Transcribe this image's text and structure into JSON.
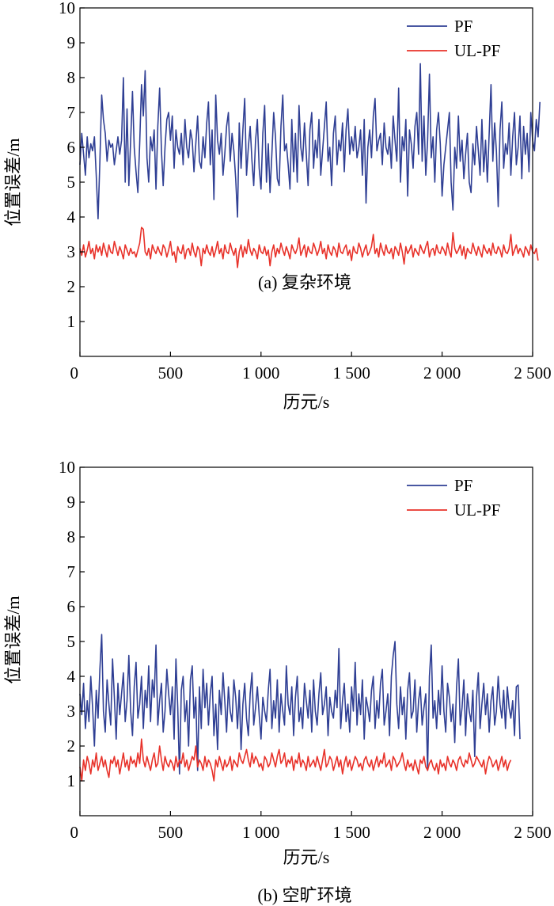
{
  "chart_data": [
    {
      "type": "line",
      "caption": "(a) 复杂环境",
      "xlabel": "历元/s",
      "ylabel": "位置误差/m",
      "xlim": [
        0,
        2500
      ],
      "ylim": [
        0,
        10
      ],
      "x_ticks": [
        0,
        500,
        1000,
        1500,
        2000,
        2500
      ],
      "x_tick_labels": [
        "0",
        "500",
        "1 000",
        "1 500",
        "2 000",
        "2 500"
      ],
      "y_ticks": [
        1,
        2,
        3,
        4,
        5,
        6,
        7,
        8,
        9,
        10
      ],
      "y_tick_labels": [
        "1",
        "2",
        "3",
        "4",
        "5",
        "6",
        "7",
        "8",
        "9",
        "10"
      ],
      "legend_position": "top-right",
      "grid": false,
      "series": [
        {
          "name": "PF",
          "color": "#2f3f94",
          "x_start": 0,
          "x_step": 10,
          "values": [
            5.5,
            6.4,
            5.8,
            5.2,
            6.3,
            5.7,
            6.1,
            5.9,
            6.3,
            5.2,
            3.95,
            5.6,
            7.5,
            6.8,
            6.4,
            5.6,
            6.2,
            6.0,
            6.1,
            5.5,
            5.9,
            6.3,
            5.8,
            6.2,
            8.0,
            5.0,
            7.1,
            4.9,
            6.2,
            7.6,
            6.0,
            5.3,
            4.7,
            6.1,
            7.8,
            6.9,
            8.2,
            5.7,
            5.0,
            6.3,
            5.9,
            6.5,
            4.8,
            6.6,
            7.7,
            5.9,
            4.9,
            6.0,
            6.8,
            7.0,
            6.2,
            6.9,
            5.4,
            6.5,
            6.0,
            5.8,
            6.4,
            5.5,
            6.8,
            6.0,
            5.7,
            6.5,
            6.2,
            5.3,
            6.1,
            6.9,
            5.6,
            5.4,
            6.3,
            5.7,
            6.7,
            7.3,
            5.5,
            6.5,
            4.5,
            7.5,
            6.2,
            5.8,
            6.4,
            5.2,
            5.8,
            6.6,
            7.0,
            5.6,
            6.4,
            5.9,
            5.1,
            4.0,
            6.7,
            5.4,
            6.5,
            7.4,
            5.2,
            6.0,
            6.6,
            5.6,
            4.9,
            6.2,
            6.8,
            5.4,
            4.8,
            6.4,
            7.2,
            5.0,
            6.1,
            4.7,
            5.8,
            7.0,
            6.3,
            5.1,
            4.9,
            6.6,
            7.5,
            5.9,
            6.1,
            5.5,
            4.8,
            6.8,
            5.3,
            6.4,
            5.0,
            7.2,
            6.0,
            5.6,
            6.7,
            5.8,
            4.9,
            6.5,
            7.0,
            5.4,
            6.2,
            5.7,
            6.8,
            5.2,
            5.9,
            6.6,
            7.3,
            5.6,
            6.0,
            4.9,
            6.4,
            6.9,
            5.5,
            6.2,
            5.9,
            6.7,
            5.3,
            6.5,
            7.1,
            5.8,
            6.3,
            5.9,
            6.6,
            5.7,
            6.0,
            6.5,
            5.2,
            6.8,
            4.4,
            6.0,
            6.5,
            5.7,
            6.9,
            7.4,
            5.9,
            6.2,
            6.4,
            5.5,
            6.7,
            6.0,
            5.8,
            6.3,
            5.4,
            6.9,
            6.2,
            5.6,
            7.7,
            5.0,
            6.3,
            5.9,
            6.8,
            4.6,
            6.5,
            6.1,
            5.4,
            6.6,
            7.0,
            5.8,
            8.4,
            5.6,
            6.9,
            5.2,
            6.2,
            8.1,
            5.7,
            6.3,
            5.0,
            6.5,
            7.0,
            6.1,
            4.6,
            5.5,
            6.0,
            6.5,
            7.0,
            5.0,
            4.2,
            6.0,
            5.4,
            6.9,
            5.6,
            6.2,
            5.1,
            5.8,
            6.4,
            5.0,
            4.7,
            6.1,
            5.5,
            6.6,
            5.9,
            5.2,
            6.8,
            5.3,
            6.2,
            5.0,
            6.4,
            7.8,
            5.6,
            6.7,
            5.9,
            4.3,
            6.5,
            7.3,
            5.4,
            6.1,
            5.8,
            6.7,
            5.2,
            6.3,
            7.0,
            5.5,
            6.0,
            6.9,
            5.1,
            6.6,
            5.8,
            6.4,
            5.3,
            7.0,
            6.2,
            5.9,
            6.8,
            6.3,
            7.3
          ]
        },
        {
          "name": "UL-PF",
          "color": "#e8322a",
          "x_start": 0,
          "x_step": 10,
          "values": [
            3.1,
            2.9,
            3.2,
            2.85,
            3.05,
            3.3,
            2.95,
            3.1,
            2.8,
            3.2,
            3.0,
            3.15,
            2.9,
            3.25,
            3.05,
            2.85,
            3.2,
            3.0,
            2.95,
            3.3,
            3.1,
            2.9,
            3.15,
            3.0,
            2.8,
            3.2,
            3.05,
            2.9,
            3.1,
            2.95,
            3.0,
            2.85,
            3.05,
            3.25,
            3.7,
            3.65,
            3.0,
            2.9,
            3.1,
            2.8,
            3.2,
            3.05,
            2.95,
            3.15,
            3.0,
            2.9,
            3.2,
            3.1,
            2.85,
            3.05,
            3.3,
            2.9,
            3.0,
            2.7,
            3.15,
            3.0,
            2.95,
            3.2,
            2.8,
            3.05,
            3.1,
            2.9,
            3.25,
            3.0,
            2.85,
            3.15,
            3.05,
            2.6,
            3.1,
            2.95,
            3.2,
            3.0,
            2.9,
            3.15,
            2.85,
            3.05,
            3.3,
            2.95,
            3.1,
            2.8,
            3.2,
            3.0,
            2.95,
            3.25,
            3.05,
            2.9,
            3.1,
            2.55,
            3.0,
            3.2,
            2.85,
            3.15,
            2.95,
            3.35,
            3.05,
            2.9,
            3.1,
            3.0,
            2.8,
            3.2,
            3.0,
            2.95,
            3.15,
            2.9,
            3.05,
            2.6,
            3.0,
            3.2,
            2.85,
            3.1,
            2.95,
            3.25,
            3.05,
            2.9,
            3.15,
            3.0,
            2.8,
            3.2,
            3.05,
            2.95,
            3.1,
            3.4,
            2.9,
            3.05,
            3.2,
            2.85,
            3.15,
            3.0,
            2.95,
            3.25,
            3.1,
            2.9,
            3.05,
            3.3,
            2.95,
            3.1,
            2.8,
            3.2,
            3.0,
            2.9,
            3.15,
            3.05,
            2.85,
            3.25,
            3.0,
            2.95,
            3.1,
            3.2,
            2.9,
            3.05,
            2.75,
            3.15,
            3.0,
            2.95,
            3.25,
            3.1,
            2.85,
            3.05,
            3.2,
            2.9,
            3.0,
            3.15,
            3.5,
            2.95,
            3.1,
            2.85,
            3.25,
            3.05,
            2.9,
            3.2,
            3.0,
            2.95,
            3.1,
            2.8,
            3.15,
            3.05,
            2.9,
            3.25,
            3.0,
            2.65,
            3.15,
            2.95,
            3.05,
            3.2,
            2.85,
            3.1,
            3.0,
            2.9,
            3.2,
            3.05,
            2.95,
            3.15,
            3.3,
            2.85,
            3.05,
            3.1,
            2.9,
            3.2,
            3.0,
            2.95,
            3.15,
            3.05,
            2.9,
            3.25,
            3.0,
            2.85,
            3.55,
            3.1,
            2.95,
            3.05,
            3.2,
            2.9,
            3.15,
            2.8,
            3.1,
            3.0,
            2.95,
            3.25,
            3.05,
            2.9,
            3.15,
            3.0,
            2.85,
            3.2,
            3.05,
            2.95,
            3.1,
            2.9,
            3.25,
            3.0,
            2.95,
            3.15,
            3.05,
            2.85,
            3.2,
            3.0,
            2.95,
            3.1,
            3.5,
            2.9,
            3.05,
            3.2,
            2.95,
            3.1,
            3.0,
            2.85,
            3.15,
            3.05,
            2.9,
            3.2,
            3.0,
            2.95,
            3.1,
            2.75
          ]
        }
      ]
    },
    {
      "type": "line",
      "caption": "(b) 空旷环境",
      "xlabel": "历元/s",
      "ylabel": "位置误差/m",
      "xlim": [
        0,
        2500
      ],
      "ylim": [
        0,
        10
      ],
      "x_ticks": [
        0,
        500,
        1000,
        1500,
        2000,
        2500
      ],
      "x_tick_labels": [
        "0",
        "500",
        "1 000",
        "1 500",
        "2 000",
        "2 500"
      ],
      "y_ticks": [
        1,
        2,
        3,
        4,
        5,
        6,
        7,
        8,
        9,
        10
      ],
      "y_tick_labels": [
        "1",
        "2",
        "3",
        "4",
        "5",
        "6",
        "7",
        "8",
        "9",
        "10"
      ],
      "legend_position": "top-right",
      "grid": false,
      "series": [
        {
          "name": "PF",
          "color": "#2f3f94",
          "x_start": 0,
          "x_step": 10,
          "values": [
            3.5,
            2.9,
            3.8,
            2.5,
            3.3,
            2.7,
            4.0,
            3.1,
            2.0,
            3.6,
            2.8,
            4.2,
            5.2,
            3.0,
            2.4,
            3.9,
            3.2,
            2.6,
            4.5,
            3.4,
            2.2,
            3.8,
            2.9,
            3.5,
            4.1,
            2.7,
            3.3,
            4.6,
            3.0,
            2.3,
            3.7,
            4.4,
            2.8,
            3.2,
            4.0,
            2.5,
            3.6,
            3.1,
            4.3,
            2.7,
            3.9,
            3.4,
            4.9,
            2.6,
            3.3,
            3.8,
            2.4,
            3.0,
            4.2,
            3.5,
            2.9,
            3.7,
            2.2,
            4.5,
            3.1,
            1.2,
            3.6,
            4.0,
            2.7,
            3.3,
            2.0,
            3.9,
            4.3,
            2.8,
            3.4,
            1.3,
            3.7,
            2.5,
            4.2,
            3.1,
            3.8,
            2.6,
            3.5,
            4.0,
            2.3,
            3.2,
            1.9,
            3.6,
            2.9,
            4.1,
            3.3,
            2.4,
            3.7,
            3.0,
            2.7,
            3.9,
            3.4,
            2.5,
            3.6,
            1.9,
            3.2,
            3.8,
            2.8,
            2.3,
            3.5,
            4.1,
            2.6,
            3.1,
            3.7,
            2.9,
            2.2,
            3.4,
            3.0,
            2.7,
            3.6,
            4.2,
            2.5,
            3.3,
            2.8,
            3.9,
            2.4,
            3.5,
            3.0,
            2.6,
            4.3,
            3.2,
            2.9,
            3.7,
            2.3,
            3.4,
            4.0,
            2.7,
            3.1,
            2.5,
            3.8,
            3.3,
            2.8,
            3.6,
            2.4,
            3.9,
            3.0,
            2.6,
            3.5,
            4.1,
            2.9,
            3.2,
            3.7,
            2.3,
            3.4,
            3.0,
            2.8,
            3.6,
            3.1,
            4.8,
            2.5,
            3.3,
            3.8,
            2.7,
            3.2,
            2.4,
            3.7,
            3.0,
            4.4,
            2.6,
            3.5,
            2.9,
            3.9,
            2.2,
            3.4,
            3.1,
            2.7,
            3.6,
            4.0,
            2.5,
            3.3,
            2.8,
            3.8,
            4.2,
            2.6,
            3.0,
            3.5,
            2.3,
            4.0,
            4.6,
            5.0,
            3.2,
            2.5,
            3.7,
            2.9,
            3.4,
            2.2,
            3.6,
            4.1,
            2.8,
            3.0,
            3.9,
            2.4,
            3.3,
            3.7,
            2.6,
            3.1,
            3.5,
            1.3,
            4.0,
            4.9,
            2.8,
            3.3,
            2.5,
            3.6,
            2.9,
            4.3,
            3.0,
            2.4,
            3.8,
            3.4,
            2.7,
            3.2,
            2.1,
            3.7,
            4.5,
            2.6,
            3.1,
            3.9,
            2.3,
            3.5,
            3.0,
            2.7,
            3.6,
            1.7,
            3.4,
            4.1,
            2.5,
            3.2,
            3.8,
            2.9,
            3.5,
            2.4,
            3.3,
            3.7,
            2.6,
            3.0,
            4.0,
            3.2,
            2.8,
            3.6,
            2.5,
            3.7,
            3.1,
            2.8,
            3.3,
            2.3,
            3.7,
            3.75,
            2.2
          ]
        },
        {
          "name": "UL-PF",
          "color": "#e8322a",
          "x_start": 0,
          "x_step": 10,
          "values": [
            1.4,
            1.0,
            1.6,
            1.3,
            1.7,
            1.5,
            1.2,
            1.6,
            1.4,
            1.8,
            1.3,
            1.5,
            1.7,
            1.4,
            1.6,
            1.3,
            1.1,
            1.6,
            1.5,
            1.7,
            1.4,
            1.6,
            1.2,
            1.5,
            1.8,
            1.4,
            1.6,
            1.3,
            1.7,
            1.5,
            1.6,
            1.4,
            1.8,
            1.5,
            2.2,
            1.6,
            1.4,
            1.7,
            1.5,
            1.3,
            1.6,
            1.8,
            1.4,
            1.5,
            2.0,
            1.6,
            1.3,
            1.7,
            1.5,
            1.4,
            1.6,
            1.5,
            1.3,
            1.7,
            1.4,
            1.6,
            1.5,
            1.8,
            1.4,
            1.6,
            1.3,
            1.5,
            1.7,
            1.6,
            2.0,
            1.4,
            1.6,
            1.5,
            1.3,
            1.7,
            1.4,
            1.6,
            1.5,
            1.3,
            1.0,
            1.6,
            1.4,
            1.7,
            1.5,
            1.3,
            1.6,
            1.4,
            1.5,
            1.7,
            1.3,
            1.6,
            1.5,
            1.4,
            1.8,
            1.6,
            1.5,
            1.7,
            1.9,
            1.6,
            1.4,
            1.8,
            1.5,
            1.7,
            1.6,
            1.4,
            1.5,
            1.3,
            1.7,
            1.6,
            1.4,
            1.5,
            1.8,
            1.6,
            1.4,
            1.7,
            1.9,
            1.5,
            1.6,
            1.8,
            1.4,
            1.6,
            1.5,
            1.7,
            1.3,
            1.6,
            1.5,
            1.8,
            1.4,
            1.6,
            1.5,
            1.3,
            1.7,
            1.4,
            1.5,
            1.6,
            1.4,
            1.7,
            1.5,
            1.3,
            1.6,
            1.9,
            1.4,
            1.5,
            1.7,
            1.6,
            1.3,
            1.5,
            1.7,
            1.4,
            1.6,
            1.2,
            1.5,
            1.7,
            1.4,
            1.6,
            1.3,
            1.5,
            1.7,
            1.6,
            1.4,
            1.5,
            1.3,
            1.6,
            1.7,
            1.5,
            1.4,
            1.6,
            1.3,
            1.5,
            1.7,
            1.4,
            1.6,
            1.5,
            1.8,
            1.4,
            1.5,
            1.6,
            1.3,
            1.7,
            1.6,
            1.4,
            1.5,
            1.6,
            1.8,
            1.5,
            1.3,
            1.6,
            1.4,
            1.5,
            1.3,
            1.6,
            1.4,
            1.2,
            1.6,
            1.5,
            1.7,
            1.4,
            1.3,
            1.5,
            1.6,
            1.4,
            1.3,
            1.5,
            1.2,
            1.6,
            1.4,
            1.5,
            1.3,
            1.7,
            1.5,
            1.4,
            1.6,
            1.5,
            1.3,
            1.6,
            1.7,
            1.5,
            1.4,
            1.6,
            1.5,
            1.8,
            1.6,
            1.4,
            1.5,
            1.7,
            1.6,
            1.5,
            1.4,
            1.6,
            1.2,
            1.5,
            1.7,
            1.6,
            1.4,
            1.5,
            1.6,
            1.3,
            1.5,
            1.7,
            1.4,
            1.6,
            1.3,
            1.5,
            1.6
          ]
        }
      ]
    }
  ]
}
